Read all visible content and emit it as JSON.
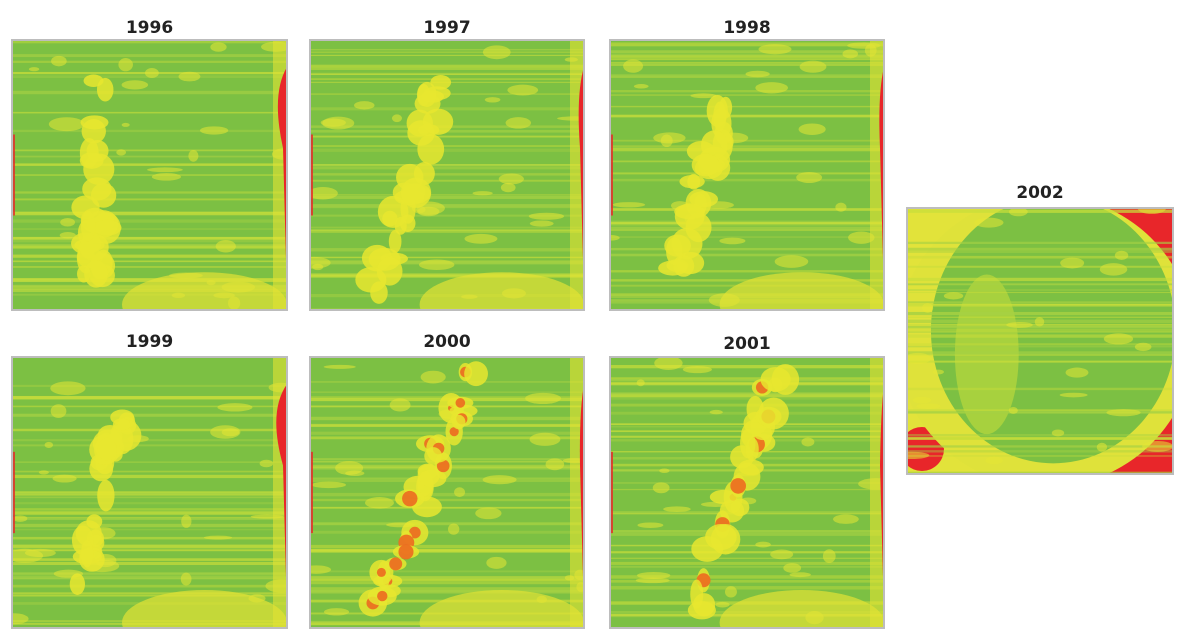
{
  "panels": [
    {
      "label": "1996"
    },
    {
      "label": "1997"
    },
    {
      "label": "1998"
    },
    {
      "label": "1999"
    },
    {
      "label": "2000"
    },
    {
      "label": "2001"
    },
    {
      "label": "2002"
    }
  ]
}
